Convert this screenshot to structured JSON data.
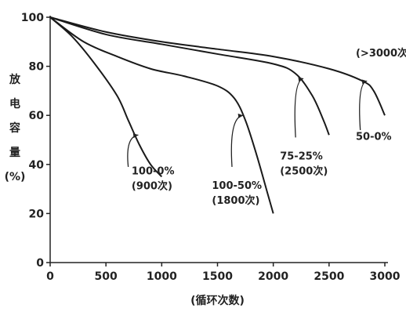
{
  "chart_data": {
    "type": "line",
    "xlabel": "(循环次数)",
    "ylabel": [
      "放",
      "电",
      "容",
      "量",
      "(%)"
    ],
    "xlim": [
      0,
      3000
    ],
    "ylim": [
      0,
      100
    ],
    "xticks": [
      0,
      500,
      1000,
      1500,
      2000,
      2500,
      3000
    ],
    "yticks": [
      0,
      20,
      40,
      60,
      80,
      100
    ],
    "grid": false,
    "series": [
      {
        "name": "100-0% (900次)",
        "x": [
          0,
          200,
          400,
          600,
          700,
          800,
          900,
          1000
        ],
        "y": [
          100,
          92,
          81,
          68,
          58,
          48,
          40,
          35
        ]
      },
      {
        "name": "100-50% (1800次)",
        "x": [
          0,
          300,
          600,
          900,
          1200,
          1500,
          1650,
          1750,
          1850,
          1950,
          2000
        ],
        "y": [
          100,
          90,
          84,
          79,
          76,
          72,
          67,
          58,
          44,
          28,
          20
        ]
      },
      {
        "name": "75-25% (2500次)",
        "x": [
          0,
          500,
          1000,
          1500,
          2000,
          2200,
          2350,
          2450,
          2500
        ],
        "y": [
          100,
          93,
          89,
          85,
          81,
          77,
          68,
          58,
          52
        ]
      },
      {
        "name": "50-0% (>3000次)",
        "x": [
          0,
          500,
          1000,
          1500,
          2000,
          2500,
          2800,
          2900,
          3000
        ],
        "y": [
          100,
          94,
          90,
          87,
          84,
          79,
          74,
          70,
          60
        ]
      }
    ],
    "annotations": [
      {
        "lines": [
          "100-0%",
          "(900次)"
        ],
        "x": 730,
        "y": 36,
        "arrow_to": [
          790,
          52
        ],
        "arrow_from": [
          700,
          39
        ]
      },
      {
        "lines": [
          "100-50%",
          "(1800次)"
        ],
        "x": 1450,
        "y": 30,
        "arrow_to": [
          1730,
          60
        ],
        "arrow_from": [
          1630,
          39
        ]
      },
      {
        "lines": [
          "75-25%",
          "(2500次)"
        ],
        "x": 2060,
        "y": 42,
        "arrow_to": [
          2270,
          75
        ],
        "arrow_from": [
          2200,
          51
        ]
      },
      {
        "lines": [
          "(>3000次)"
        ],
        "x": 2740,
        "y": 84
      },
      {
        "lines": [
          "50-0%"
        ],
        "x": 2740,
        "y": 50,
        "arrow_to": [
          2840,
          74
        ],
        "arrow_from": [
          2780,
          54
        ]
      }
    ]
  }
}
